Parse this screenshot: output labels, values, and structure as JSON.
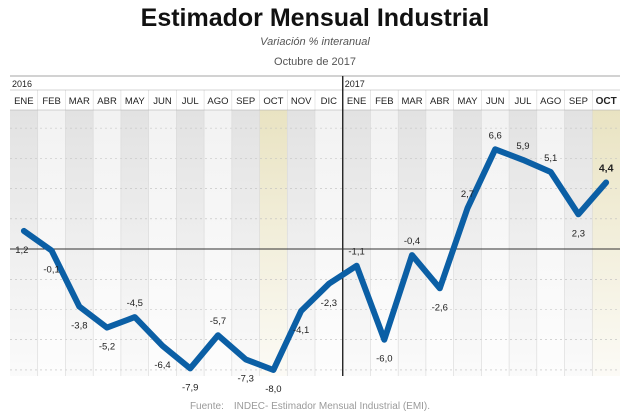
{
  "header": {
    "title": "Estimador Mensual Industrial",
    "subtitle": "Variación % interanual",
    "date": "Octubre de 2017"
  },
  "source": {
    "label": "Fuente:",
    "text": "INDEC- Estimador Mensual Industrial (EMI)."
  },
  "colors": {
    "line": "#0b5fa5",
    "highlight": "#e9e3c2",
    "grid": "#bdbdbd",
    "band_dark": "#e2e2e2",
    "band_light": "#f2f2f2"
  },
  "chart_data": {
    "type": "line",
    "title": "Estimador Mensual Industrial",
    "ylabel": "Variación % interanual",
    "ylim": [
      -8.4,
      9.2
    ],
    "years": [
      {
        "label": "2016",
        "months": [
          "ENE",
          "FEB",
          "MAR",
          "ABR",
          "MAY",
          "JUN",
          "JUL",
          "AGO",
          "SEP",
          "OCT",
          "NOV",
          "DIC"
        ]
      },
      {
        "label": "2017",
        "months": [
          "ENE",
          "FEB",
          "MAR",
          "ABR",
          "MAY",
          "JUN",
          "JUL",
          "AGO",
          "SEP",
          "OCT"
        ]
      }
    ],
    "highlight_months": [
      9,
      21
    ],
    "series": [
      {
        "name": "EMI",
        "values": [
          1.2,
          -0.1,
          -3.8,
          -5.2,
          -4.5,
          -6.4,
          -7.9,
          -5.7,
          -7.3,
          -8.0,
          -4.1,
          -2.3,
          -1.1,
          -6.0,
          -0.4,
          -2.6,
          2.7,
          6.6,
          5.9,
          5.1,
          2.3,
          4.4
        ],
        "labels": [
          "1,2",
          "-0,1",
          "-3,8",
          "-5,2",
          "-4,5",
          "-6,4",
          "-7,9",
          "-5,7",
          "-7,3",
          "-8,0",
          "-4,1",
          "-2,3",
          "-1,1",
          "-6,0",
          "-0,4",
          "-2,6",
          "2,7",
          "6,6",
          "5,9",
          "5,1",
          "2,3",
          "4,4"
        ]
      }
    ]
  }
}
